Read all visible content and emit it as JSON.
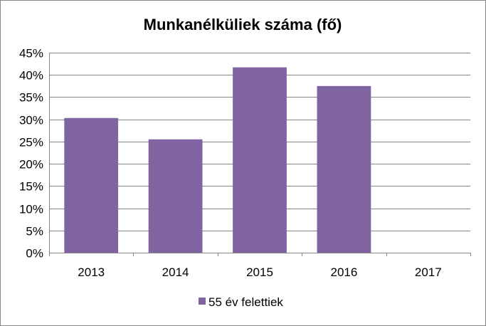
{
  "chart_data": {
    "type": "bar",
    "title": "Munkanélküliek száma (fő)",
    "categories": [
      "2013",
      "2014",
      "2015",
      "2016",
      "2017"
    ],
    "series": [
      {
        "name": "55 év felettiek",
        "values": [
          30.3,
          25.5,
          41.7,
          37.5,
          null
        ],
        "color": "#8064A2"
      }
    ],
    "ylim": [
      0,
      45
    ],
    "yticks": [
      "0%",
      "5%",
      "10%",
      "15%",
      "20%",
      "25%",
      "30%",
      "35%",
      "40%",
      "45%"
    ],
    "ytick_values": [
      0,
      5,
      10,
      15,
      20,
      25,
      30,
      35,
      40,
      45
    ],
    "grid": true,
    "legend_position": "bottom",
    "gridline_color": "#868686"
  }
}
